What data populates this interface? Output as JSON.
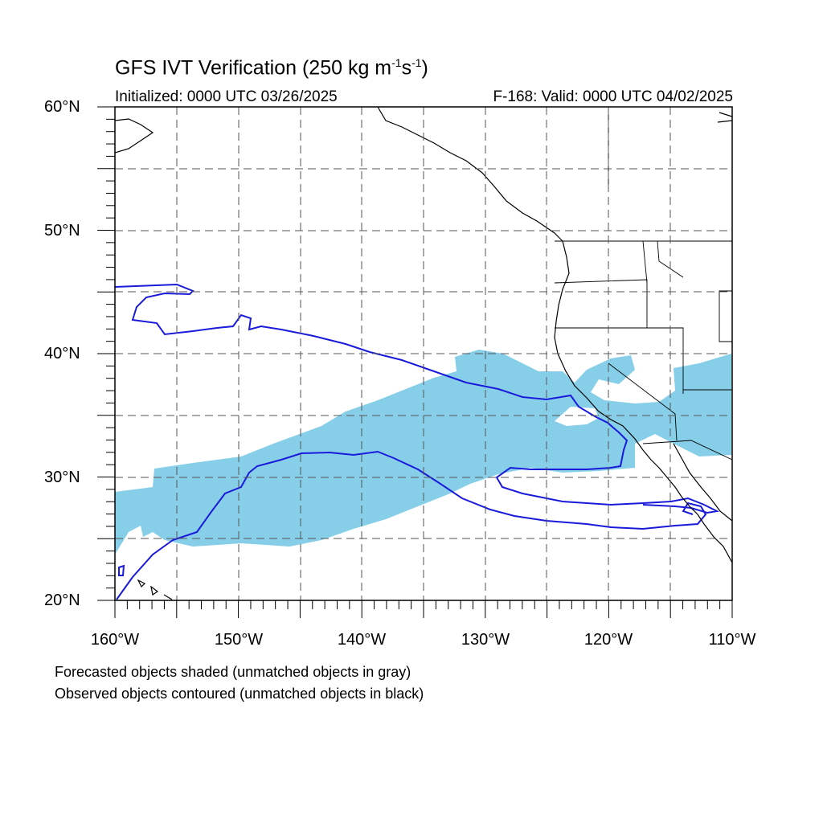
{
  "title": {
    "main": "GFS IVT Verification (250 kg m",
    "sup1": "-1",
    "mid": "s",
    "sup2": "-1",
    "end": ")"
  },
  "subtitle": {
    "initialized": "Initialized: 0000 UTC 03/26/2025",
    "valid": "F-168: Valid: 0000 UTC 04/02/2025"
  },
  "map": {
    "lon_range": [
      -160,
      -110
    ],
    "lat_range": [
      20,
      60
    ],
    "lat_labels": [
      "20°N",
      "30°N",
      "40°N",
      "50°N",
      "60°N"
    ],
    "lon_labels": [
      "160°W",
      "150°W",
      "140°W",
      "130°W",
      "120°W",
      "110°W"
    ],
    "forecast_fill_color": "#87cfe9",
    "observed_contour_color": "#1a1adb"
  },
  "footnotes": {
    "line1": "Forecasted objects shaded (unmatched objects in gray)",
    "line2": "Observed objects contoured (unmatched objects in black)"
  }
}
